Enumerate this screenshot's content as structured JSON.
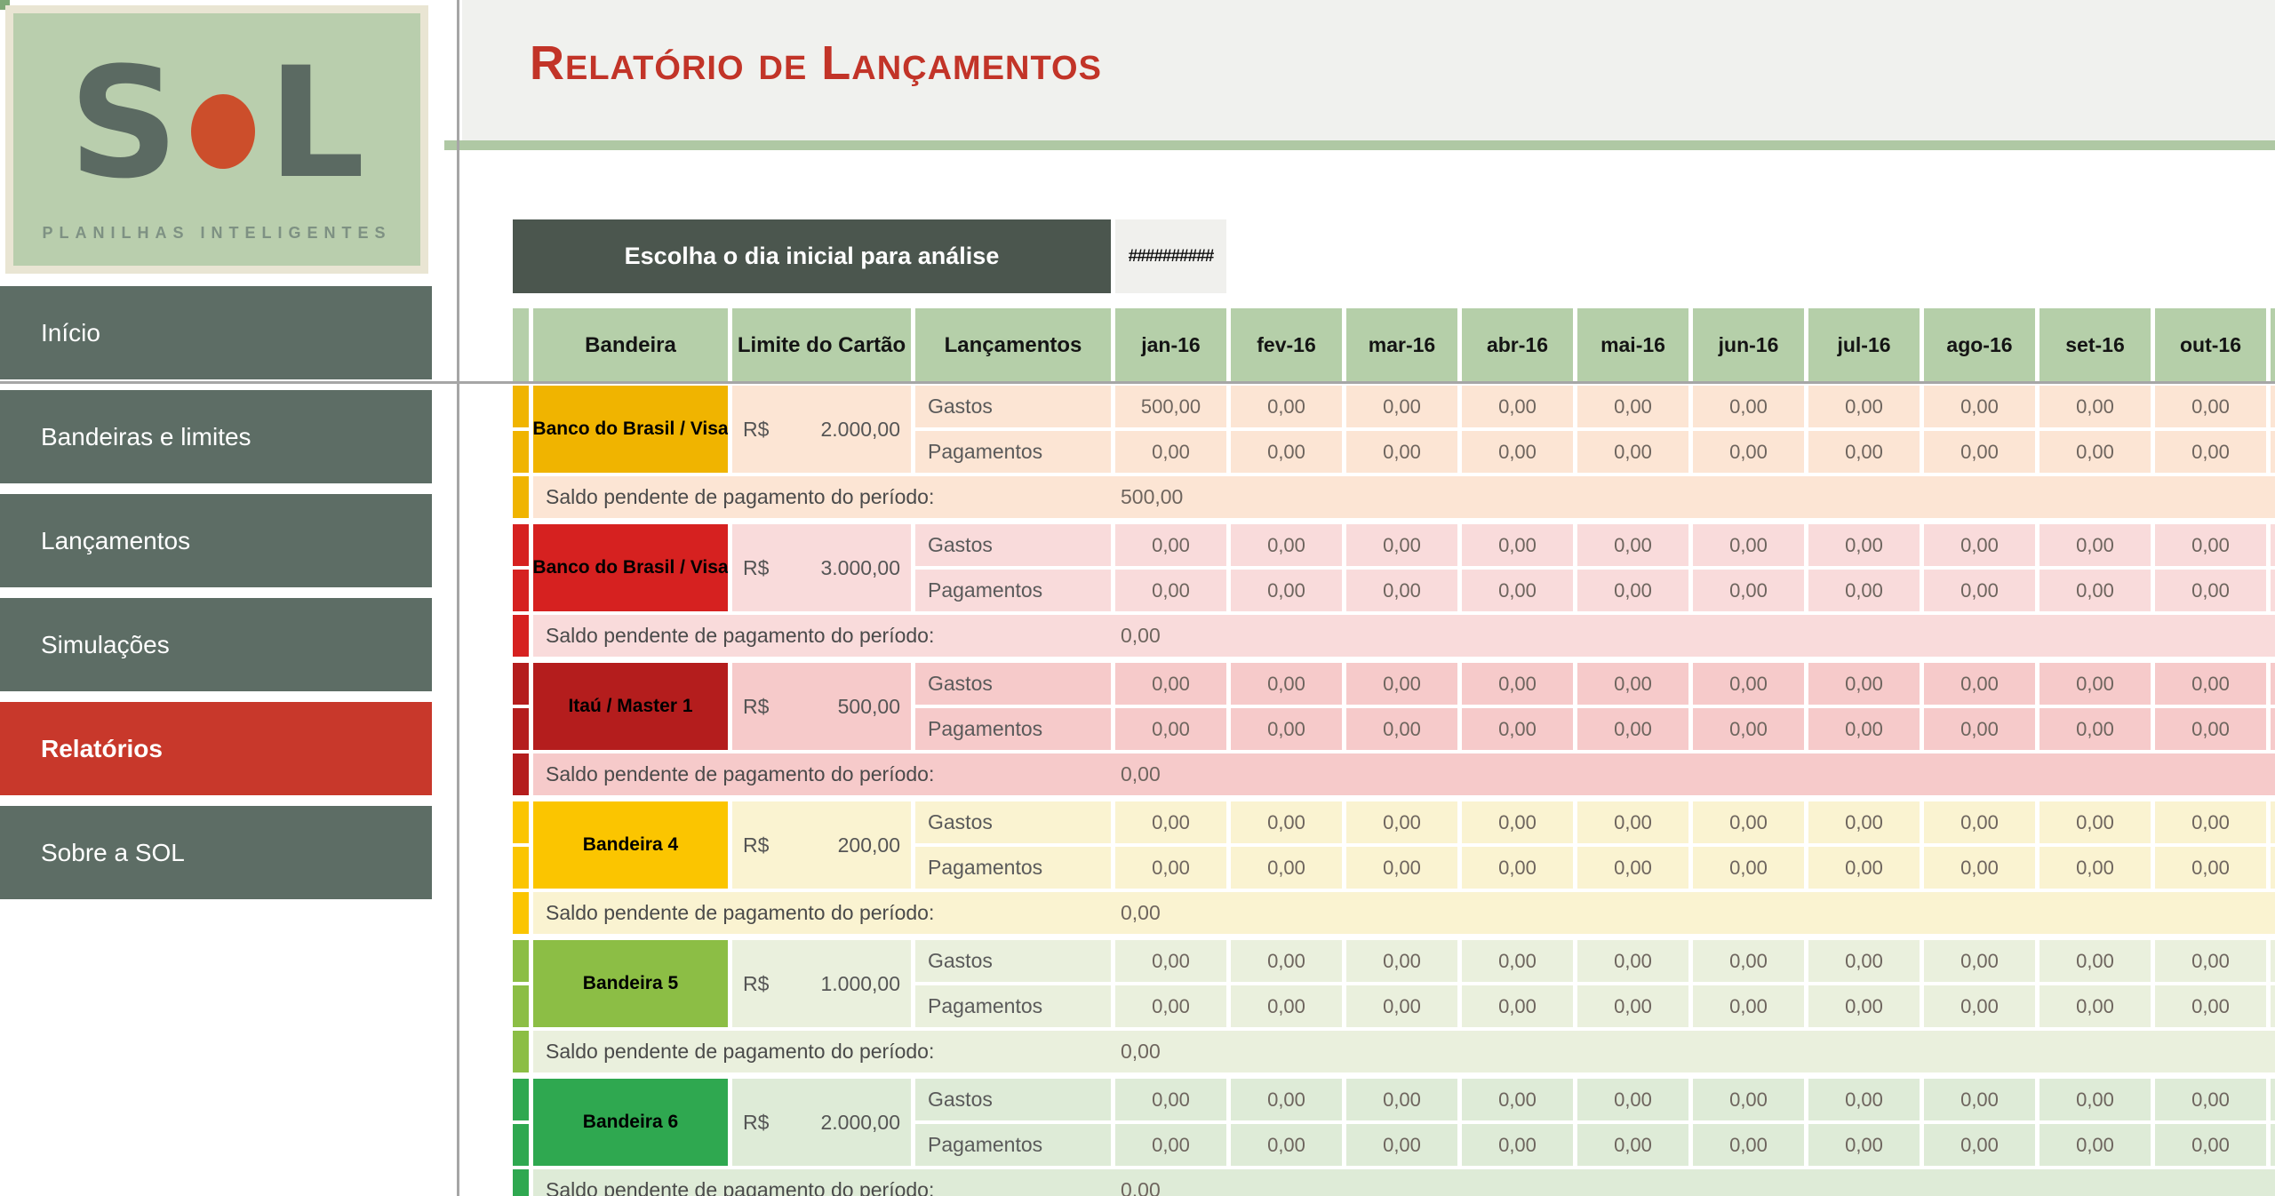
{
  "sidebar": {
    "logo": {
      "word_left": "S",
      "word_right": "L",
      "subtitle": "PLANILHAS INTELIGENTES"
    },
    "items": [
      {
        "label": "Início",
        "active": false
      },
      {
        "label": "Bandeiras e limites",
        "active": false
      },
      {
        "label": "Lançamentos",
        "active": false
      },
      {
        "label": "Simulações",
        "active": false
      },
      {
        "label": "Relatórios",
        "active": true
      },
      {
        "label": "Sobre a SOL",
        "active": false
      }
    ]
  },
  "header": {
    "title": "Relatório de Lançamentos"
  },
  "filter": {
    "label": "Escolha o dia inicial para análise",
    "value": "##########"
  },
  "colors": {
    "sidebar_item": "#5D6D65",
    "sidebar_active": "#C8382B",
    "title_red": "#C23428",
    "header_green": "#B5CFA9",
    "green_rule": "#AFC8A4",
    "filter_dark": "#4B564E",
    "logo_dot_orange": "#CC4E2B",
    "logo_bg_green": "#B9CEAD"
  },
  "table": {
    "columns": [
      "Bandeira",
      "Limite do Cartão",
      "Lançamentos"
    ],
    "months": [
      "jan-16",
      "fev-16",
      "mar-16",
      "abr-16",
      "mai-16",
      "jun-16",
      "jul-16",
      "ago-16",
      "set-16",
      "out-16"
    ],
    "currency": "R$",
    "row_labels": {
      "gastos": "Gastos",
      "pagamentos": "Pagamentos"
    },
    "saldo_label": "Saldo pendente de pagamento do período:",
    "blocks": [
      {
        "name": "Banco do Brasil / Visa",
        "limit": "2.000,00",
        "accent": "#F0B400",
        "row_bg": "#FCE5D4",
        "gastos": [
          "500,00",
          "0,00",
          "0,00",
          "0,00",
          "0,00",
          "0,00",
          "0,00",
          "0,00",
          "0,00",
          "0,00"
        ],
        "pagamentos": [
          "0,00",
          "0,00",
          "0,00",
          "0,00",
          "0,00",
          "0,00",
          "0,00",
          "0,00",
          "0,00",
          "0,00"
        ],
        "saldo": "500,00"
      },
      {
        "name": "Banco do Brasil / Visa",
        "limit": "3.000,00",
        "accent": "#D62120",
        "row_bg": "#F9DBDB",
        "gastos": [
          "0,00",
          "0,00",
          "0,00",
          "0,00",
          "0,00",
          "0,00",
          "0,00",
          "0,00",
          "0,00",
          "0,00"
        ],
        "pagamentos": [
          "0,00",
          "0,00",
          "0,00",
          "0,00",
          "0,00",
          "0,00",
          "0,00",
          "0,00",
          "0,00",
          "0,00"
        ],
        "saldo": "0,00"
      },
      {
        "name": "Itaú / Master 1",
        "limit": "500,00",
        "accent": "#B41D1D",
        "row_bg": "#F6CACA",
        "gastos": [
          "0,00",
          "0,00",
          "0,00",
          "0,00",
          "0,00",
          "0,00",
          "0,00",
          "0,00",
          "0,00",
          "0,00"
        ],
        "pagamentos": [
          "0,00",
          "0,00",
          "0,00",
          "0,00",
          "0,00",
          "0,00",
          "0,00",
          "0,00",
          "0,00",
          "0,00"
        ],
        "saldo": "0,00"
      },
      {
        "name": "Bandeira 4",
        "limit": "200,00",
        "accent": "#FBC500",
        "row_bg": "#FAF3D1",
        "gastos": [
          "0,00",
          "0,00",
          "0,00",
          "0,00",
          "0,00",
          "0,00",
          "0,00",
          "0,00",
          "0,00",
          "0,00"
        ],
        "pagamentos": [
          "0,00",
          "0,00",
          "0,00",
          "0,00",
          "0,00",
          "0,00",
          "0,00",
          "0,00",
          "0,00",
          "0,00"
        ],
        "saldo": "0,00"
      },
      {
        "name": "Bandeira 5",
        "limit": "1.000,00",
        "accent": "#8CBE45",
        "row_bg": "#EAF0DD",
        "gastos": [
          "0,00",
          "0,00",
          "0,00",
          "0,00",
          "0,00",
          "0,00",
          "0,00",
          "0,00",
          "0,00",
          "0,00"
        ],
        "pagamentos": [
          "0,00",
          "0,00",
          "0,00",
          "0,00",
          "0,00",
          "0,00",
          "0,00",
          "0,00",
          "0,00",
          "0,00"
        ],
        "saldo": "0,00"
      },
      {
        "name": "Bandeira 6",
        "limit": "2.000,00",
        "accent": "#2FA850",
        "row_bg": "#DEEBD7",
        "gastos": [
          "0,00",
          "0,00",
          "0,00",
          "0,00",
          "0,00",
          "0,00",
          "0,00",
          "0,00",
          "0,00",
          "0,00"
        ],
        "pagamentos": [
          "0,00",
          "0,00",
          "0,00",
          "0,00",
          "0,00",
          "0,00",
          "0,00",
          "0,00",
          "0,00",
          "0,00"
        ],
        "saldo": "0,00"
      }
    ]
  }
}
